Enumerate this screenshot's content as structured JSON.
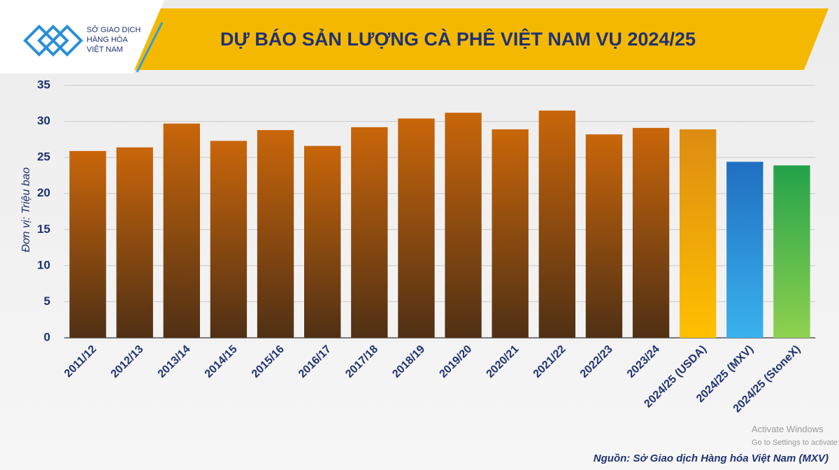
{
  "chart_data": {
    "type": "bar",
    "title": "DỰ BÁO SẢN LƯỢNG CÀ PHÊ VIỆT NAM VỤ 2024/25",
    "logo_text": [
      "SỞ GIAO DỊCH",
      "HÀNG HÓA",
      "VIỆT NAM"
    ],
    "y_label": "Đơn vị: Triệu bao",
    "source": "Nguồn: Sở Giao dịch Hàng hóa Việt Nam (MXV)",
    "watermark": [
      "Activate Windows",
      "Go to Settings to activate"
    ],
    "categories": [
      "2011/12",
      "2012/13",
      "2013/14",
      "2014/15",
      "2015/16",
      "2016/17",
      "2017/18",
      "2018/19",
      "2019/20",
      "2020/21",
      "2021/22",
      "2022/23",
      "2023/24",
      "2024/25 (USDA)",
      "2024/25 (MXV)",
      "2024/25 (StoneX)"
    ],
    "values": [
      25.9,
      26.4,
      29.7,
      27.3,
      28.8,
      26.6,
      29.2,
      30.4,
      31.2,
      28.9,
      31.5,
      28.2,
      29.1,
      28.9,
      24.4,
      23.9
    ],
    "bar_gradients": [
      [
        "#c9660a",
        "#4f3015"
      ],
      [
        "#c9660a",
        "#4f3015"
      ],
      [
        "#c9660a",
        "#4f3015"
      ],
      [
        "#c9660a",
        "#4f3015"
      ],
      [
        "#c9660a",
        "#4f3015"
      ],
      [
        "#c9660a",
        "#4f3015"
      ],
      [
        "#c9660a",
        "#4f3015"
      ],
      [
        "#c9660a",
        "#4f3015"
      ],
      [
        "#c9660a",
        "#4f3015"
      ],
      [
        "#c9660a",
        "#4f3015"
      ],
      [
        "#c9660a",
        "#4f3015"
      ],
      [
        "#c9660a",
        "#4f3015"
      ],
      [
        "#c9660a",
        "#4f3015"
      ],
      [
        "#dc8c12",
        "#ffc000"
      ],
      [
        "#1f6fc0",
        "#3ab2ee"
      ],
      [
        "#23a24a",
        "#8fd14f"
      ]
    ],
    "ylim": [
      0,
      35
    ],
    "yticks": [
      0,
      5,
      10,
      15,
      20,
      25,
      30,
      35
    ],
    "grid": true
  }
}
